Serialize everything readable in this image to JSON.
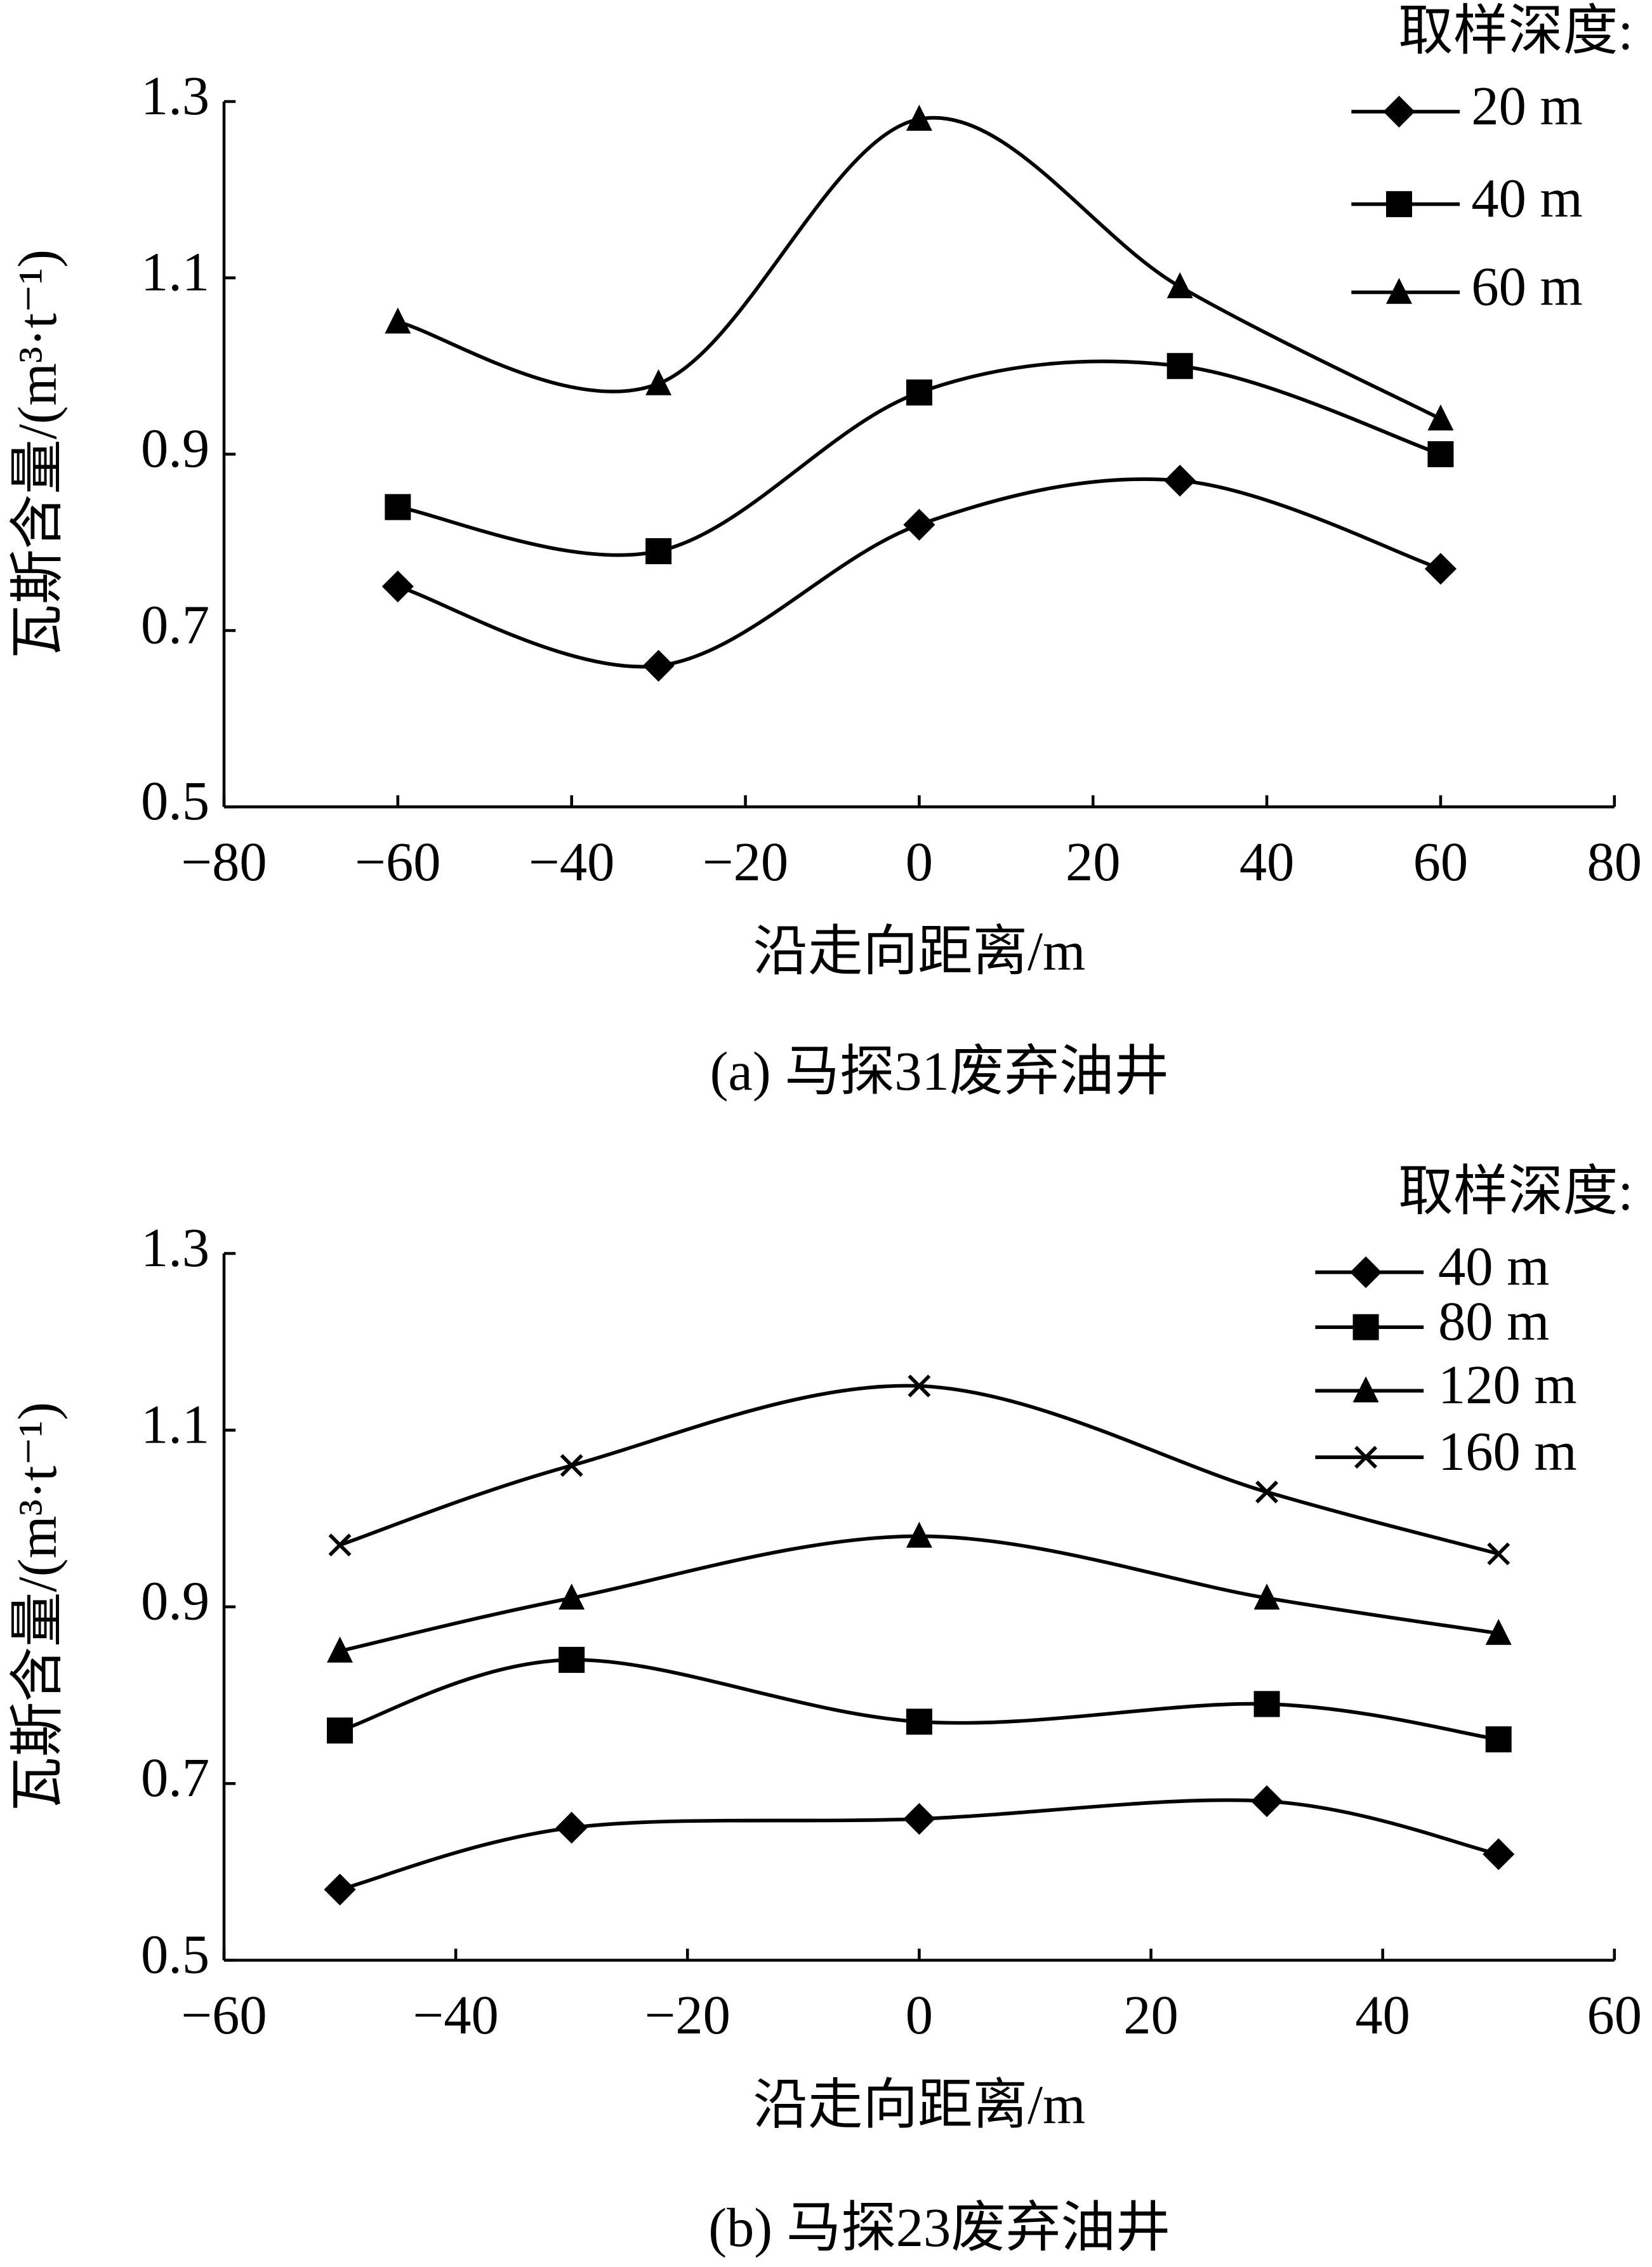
{
  "chart_data": [
    {
      "type": "line",
      "caption": "(a)  马探31废弃油井",
      "xlabel": "沿走向距离/m",
      "ylabel": "瓦斯含量/(m³·t⁻¹)",
      "legend_title": "取样深度:",
      "x": [
        -60,
        -30,
        0,
        30,
        60
      ],
      "series": [
        {
          "name": "20 m",
          "color": "#000000",
          "marker": "diamond",
          "values": [
            0.75,
            0.66,
            0.82,
            0.87,
            0.77
          ]
        },
        {
          "name": "40 m",
          "color": "#000000",
          "marker": "square",
          "values": [
            0.84,
            0.79,
            0.97,
            1.0,
            0.9
          ]
        },
        {
          "name": "60 m",
          "color": "#000000",
          "marker": "triangle",
          "values": [
            1.05,
            0.98,
            1.28,
            1.09,
            0.94
          ]
        }
      ],
      "xlim": [
        -80,
        80
      ],
      "xticks": [
        {
          "value": -80,
          "label": "−80"
        },
        {
          "value": -60,
          "label": "−60"
        },
        {
          "value": -40,
          "label": "−40"
        },
        {
          "value": -20,
          "label": "−20"
        },
        0,
        20,
        40,
        60,
        80
      ],
      "ylim": [
        0.5,
        1.3
      ],
      "yticks": [
        0.5,
        0.7,
        0.9,
        1.1,
        1.3
      ]
    },
    {
      "type": "line",
      "caption": "(b)  马探23废弃油井",
      "xlabel": "沿走向距离/m",
      "ylabel": "瓦斯含量/(m³·t⁻¹)",
      "legend_title": "取样深度:",
      "x": [
        -50,
        -30,
        0,
        30,
        50
      ],
      "series": [
        {
          "name": "40 m",
          "color": "#000000",
          "marker": "diamond",
          "values": [
            0.58,
            0.65,
            0.66,
            0.68,
            0.62
          ]
        },
        {
          "name": "80 m",
          "color": "#000000",
          "marker": "square",
          "values": [
            0.76,
            0.84,
            0.77,
            0.79,
            0.75
          ]
        },
        {
          "name": "120 m",
          "color": "#000000",
          "marker": "triangle",
          "values": [
            0.85,
            0.91,
            0.98,
            0.91,
            0.87
          ]
        },
        {
          "name": "160 m",
          "color": "#000000",
          "marker": "x",
          "values": [
            0.97,
            1.06,
            1.15,
            1.03,
            0.96
          ]
        }
      ],
      "xlim": [
        -60,
        60
      ],
      "xticks": [
        {
          "value": -60,
          "label": "−60"
        },
        {
          "value": -40,
          "label": "−40"
        },
        {
          "value": -20,
          "label": "−20"
        },
        0,
        20,
        40,
        60
      ],
      "ylim": [
        0.5,
        1.3
      ],
      "yticks": [
        0.5,
        0.7,
        0.9,
        1.1,
        1.3
      ]
    }
  ]
}
